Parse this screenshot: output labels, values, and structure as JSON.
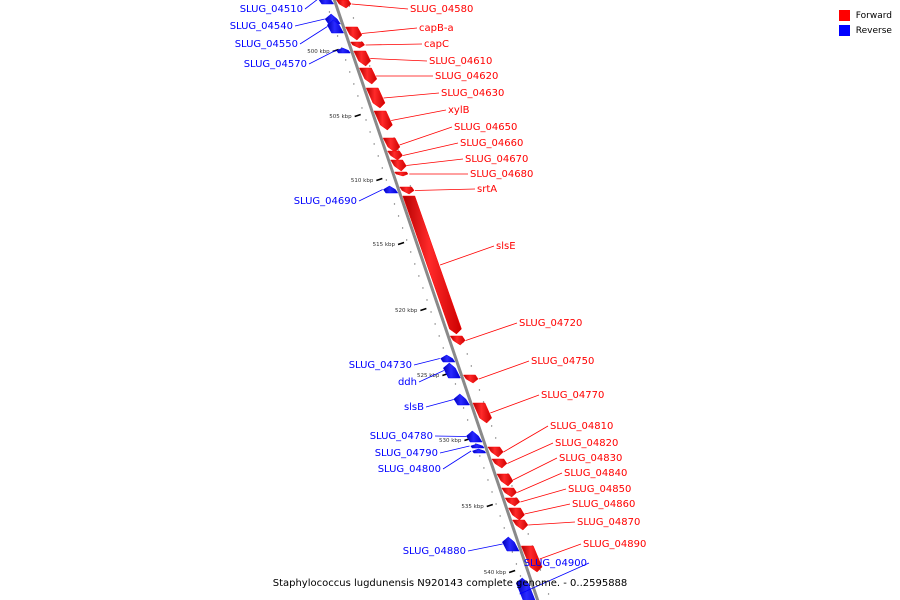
{
  "title": "Staphylococcus lugdunensis N920143 complete genome. - 0..2595888",
  "legend": [
    {
      "key": "forward",
      "label": "Forward",
      "color": "#ff0000"
    },
    {
      "key": "reverse",
      "label": "Reverse",
      "color": "#0000ff"
    }
  ],
  "colors": {
    "forward": "#ff0000",
    "reverse": "#0000ff",
    "backbone": "#808080"
  },
  "ticks": [
    "500 kbp",
    "505 kbp",
    "510 kbp",
    "515 kbp",
    "520 kbp",
    "525 kbp",
    "530 kbp",
    "535 kbp",
    "540 kbp"
  ],
  "genes": [
    {
      "name": "SLUG_04510",
      "strand": "reverse"
    },
    {
      "name": "SLUG_04540",
      "strand": "reverse"
    },
    {
      "name": "SLUG_04550",
      "strand": "reverse"
    },
    {
      "name": "SLUG_04570",
      "strand": "reverse"
    },
    {
      "name": "SLUG_04580",
      "strand": "forward"
    },
    {
      "name": "capB-a",
      "strand": "forward"
    },
    {
      "name": "capC",
      "strand": "forward"
    },
    {
      "name": "SLUG_04610",
      "strand": "forward"
    },
    {
      "name": "SLUG_04620",
      "strand": "forward"
    },
    {
      "name": "SLUG_04630",
      "strand": "forward"
    },
    {
      "name": "xylB",
      "strand": "forward"
    },
    {
      "name": "SLUG_04650",
      "strand": "forward"
    },
    {
      "name": "SLUG_04660",
      "strand": "forward"
    },
    {
      "name": "SLUG_04670",
      "strand": "forward"
    },
    {
      "name": "SLUG_04680",
      "strand": "forward"
    },
    {
      "name": "srtA",
      "strand": "forward"
    },
    {
      "name": "SLUG_04690",
      "strand": "reverse"
    },
    {
      "name": "slsE",
      "strand": "forward"
    },
    {
      "name": "SLUG_04720",
      "strand": "forward"
    },
    {
      "name": "SLUG_04730",
      "strand": "reverse"
    },
    {
      "name": "ddh",
      "strand": "reverse"
    },
    {
      "name": "SLUG_04750",
      "strand": "forward"
    },
    {
      "name": "slsB",
      "strand": "reverse"
    },
    {
      "name": "SLUG_04770",
      "strand": "forward"
    },
    {
      "name": "SLUG_04780",
      "strand": "reverse"
    },
    {
      "name": "SLUG_04790",
      "strand": "reverse"
    },
    {
      "name": "SLUG_04800",
      "strand": "reverse"
    },
    {
      "name": "SLUG_04810",
      "strand": "forward"
    },
    {
      "name": "SLUG_04820",
      "strand": "forward"
    },
    {
      "name": "SLUG_04830",
      "strand": "forward"
    },
    {
      "name": "SLUG_04840",
      "strand": "forward"
    },
    {
      "name": "SLUG_04850",
      "strand": "forward"
    },
    {
      "name": "SLUG_04860",
      "strand": "forward"
    },
    {
      "name": "SLUG_04870",
      "strand": "forward"
    },
    {
      "name": "SLUG_04880",
      "strand": "reverse"
    },
    {
      "name": "SLUG_04890",
      "strand": "forward"
    },
    {
      "name": "SLUG_04900",
      "strand": "reverse"
    }
  ]
}
